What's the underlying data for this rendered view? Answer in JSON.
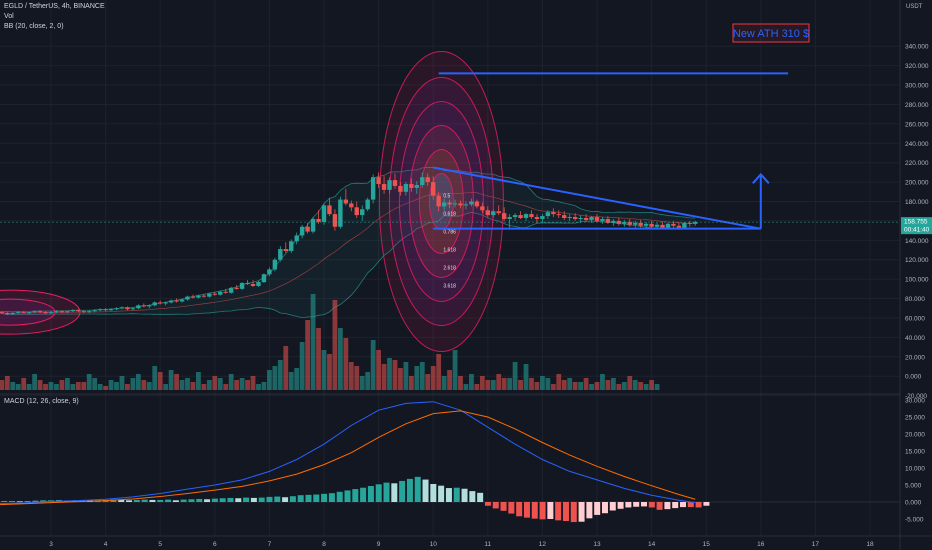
{
  "header": {
    "symbol_line": "EGLD / TetherUS, 4h, BINANCE",
    "vol_label": "Vol",
    "bb_label": "BB (20, close, 2, 0)",
    "macd_label": "MACD (12, 26, close, 9)"
  },
  "price_axis": {
    "currency": "USDT",
    "ticks": [
      "340.000",
      "320.000",
      "300.000",
      "280.000",
      "260.000",
      "240.000",
      "220.000",
      "200.000",
      "180.000",
      "160.000",
      "140.000",
      "120.000",
      "100.000",
      "80.000",
      "60.000",
      "40.000",
      "20.000",
      "0.000",
      "-20.000"
    ],
    "last_price": "158.755",
    "countdown": "00:41:40"
  },
  "macd_axis": {
    "ticks": [
      "30.000",
      "25.000",
      "20.000",
      "15.000",
      "10.000",
      "5.000",
      "0.000",
      "-5.000"
    ]
  },
  "time_axis": {
    "ticks": [
      "3",
      "4",
      "5",
      "6",
      "7",
      "8",
      "9",
      "10",
      "11",
      "12",
      "13",
      "14",
      "15",
      "16",
      "17",
      "18"
    ]
  },
  "annotation": {
    "label": "New ATH 310 $"
  },
  "colors": {
    "background": "#131722",
    "up": "#26a69a",
    "down": "#ef5350",
    "trendline": "#2962ff",
    "macd_line": "#2962ff",
    "signal_line": "#ff6d00",
    "annotation_box": "#f23645",
    "axis_text": "#b2b5be"
  },
  "chart_data": [
    {
      "type": "candlestick",
      "title": "EGLD / TetherUS, 4h, BINANCE",
      "x_range": [
        2.0,
        18.5
      ],
      "y_range": [
        -30,
        355
      ],
      "candles": [
        [
          2.0,
          65,
          67,
          63,
          66
        ],
        [
          2.1,
          66,
          67,
          64,
          65
        ],
        [
          2.2,
          65,
          66,
          63,
          64
        ],
        [
          2.3,
          64,
          66,
          63,
          65
        ],
        [
          2.4,
          65,
          67,
          64,
          66
        ],
        [
          2.5,
          66,
          67,
          65,
          65
        ],
        [
          2.6,
          65,
          66,
          64,
          66
        ],
        [
          2.7,
          66,
          67,
          65,
          67
        ],
        [
          2.8,
          67,
          68,
          65,
          66
        ],
        [
          2.9,
          66,
          67,
          64,
          65
        ],
        [
          3.0,
          65,
          67,
          64,
          66
        ],
        [
          3.1,
          66,
          68,
          65,
          67
        ],
        [
          3.2,
          67,
          68,
          65,
          66
        ],
        [
          3.3,
          66,
          67,
          65,
          67
        ],
        [
          3.4,
          67,
          69,
          66,
          68
        ],
        [
          3.5,
          68,
          69,
          66,
          67
        ],
        [
          3.6,
          67,
          68,
          65,
          66
        ],
        [
          3.7,
          66,
          68,
          65,
          67
        ],
        [
          3.8,
          67,
          69,
          66,
          68
        ],
        [
          3.9,
          68,
          70,
          67,
          69
        ],
        [
          4.0,
          69,
          70,
          67,
          68
        ],
        [
          4.1,
          68,
          70,
          67,
          69
        ],
        [
          4.2,
          69,
          71,
          68,
          70
        ],
        [
          4.3,
          70,
          72,
          69,
          71
        ],
        [
          4.4,
          71,
          72,
          68,
          69
        ],
        [
          4.5,
          69,
          71,
          68,
          70
        ],
        [
          4.6,
          70,
          74,
          69,
          73
        ],
        [
          4.7,
          73,
          75,
          71,
          72
        ],
        [
          4.8,
          72,
          74,
          70,
          73
        ],
        [
          4.9,
          73,
          77,
          72,
          76
        ],
        [
          5.0,
          76,
          78,
          74,
          75
        ],
        [
          5.1,
          75,
          77,
          73,
          76
        ],
        [
          5.2,
          76,
          79,
          75,
          78
        ],
        [
          5.3,
          78,
          80,
          76,
          77
        ],
        [
          5.4,
          77,
          80,
          76,
          79
        ],
        [
          5.5,
          79,
          83,
          78,
          82
        ],
        [
          5.6,
          82,
          84,
          80,
          81
        ],
        [
          5.7,
          81,
          84,
          80,
          83
        ],
        [
          5.8,
          83,
          85,
          81,
          82
        ],
        [
          5.9,
          82,
          86,
          81,
          85
        ],
        [
          6.0,
          85,
          87,
          83,
          84
        ],
        [
          6.1,
          84,
          88,
          83,
          87
        ],
        [
          6.2,
          87,
          90,
          85,
          86
        ],
        [
          6.3,
          86,
          92,
          85,
          91
        ],
        [
          6.4,
          91,
          94,
          89,
          90
        ],
        [
          6.5,
          90,
          97,
          89,
          96
        ],
        [
          6.6,
          96,
          99,
          94,
          95
        ],
        [
          6.7,
          95,
          99,
          92,
          93
        ],
        [
          6.8,
          93,
          98,
          92,
          97
        ],
        [
          6.9,
          97,
          106,
          96,
          105
        ],
        [
          7.0,
          105,
          112,
          103,
          110
        ],
        [
          7.1,
          110,
          122,
          108,
          120
        ],
        [
          7.2,
          120,
          134,
          118,
          131
        ],
        [
          7.3,
          131,
          138,
          127,
          129
        ],
        [
          7.4,
          129,
          141,
          127,
          139
        ],
        [
          7.5,
          139,
          148,
          136,
          145
        ],
        [
          7.6,
          145,
          156,
          142,
          154
        ],
        [
          7.7,
          154,
          158,
          147,
          149
        ],
        [
          7.8,
          149,
          164,
          147,
          162
        ],
        [
          7.9,
          162,
          171,
          157,
          159
        ],
        [
          8.0,
          159,
          178,
          156,
          176
        ],
        [
          8.1,
          176,
          184,
          165,
          167
        ],
        [
          8.2,
          167,
          172,
          150,
          154
        ],
        [
          8.3,
          154,
          185,
          152,
          182
        ],
        [
          8.4,
          182,
          193,
          176,
          178
        ],
        [
          8.5,
          178,
          181,
          170,
          174
        ],
        [
          8.6,
          174,
          180,
          163,
          166
        ],
        [
          8.7,
          166,
          176,
          160,
          172
        ],
        [
          8.8,
          172,
          184,
          170,
          182
        ],
        [
          8.9,
          182,
          208,
          178,
          205
        ],
        [
          9.0,
          205,
          210,
          194,
          198
        ],
        [
          9.1,
          198,
          206,
          188,
          192
        ],
        [
          9.2,
          192,
          205,
          188,
          202
        ],
        [
          9.3,
          202,
          209,
          193,
          196
        ],
        [
          9.4,
          196,
          200,
          186,
          190
        ],
        [
          9.5,
          190,
          200,
          186,
          198
        ],
        [
          9.6,
          198,
          204,
          190,
          194
        ],
        [
          9.7,
          194,
          201,
          188,
          197
        ],
        [
          9.8,
          197,
          210,
          194,
          205
        ],
        [
          9.9,
          205,
          209,
          196,
          200
        ],
        [
          10.0,
          200,
          206,
          182,
          186
        ],
        [
          10.1,
          186,
          190,
          170,
          175
        ],
        [
          10.2,
          175,
          183,
          171,
          179
        ],
        [
          10.3,
          179,
          182,
          173,
          177
        ],
        [
          10.4,
          177,
          182,
          174,
          178
        ],
        [
          10.5,
          178,
          181,
          173,
          176
        ],
        [
          10.6,
          176,
          180,
          172,
          177
        ],
        [
          10.7,
          177,
          183,
          175,
          180
        ],
        [
          10.8,
          180,
          182,
          173,
          175
        ],
        [
          10.9,
          175,
          179,
          168,
          171
        ],
        [
          11.0,
          171,
          175,
          164,
          166
        ],
        [
          11.1,
          166,
          172,
          163,
          170
        ],
        [
          11.2,
          170,
          176,
          166,
          168
        ],
        [
          11.3,
          168,
          174,
          160,
          162
        ],
        [
          11.4,
          162,
          167,
          152,
          164
        ],
        [
          11.5,
          164,
          168,
          160,
          166
        ],
        [
          11.6,
          166,
          170,
          162,
          163
        ],
        [
          11.7,
          163,
          168,
          160,
          167
        ],
        [
          11.8,
          167,
          171,
          162,
          164
        ],
        [
          11.9,
          164,
          167,
          158,
          162
        ],
        [
          12.0,
          162,
          167,
          158,
          165
        ],
        [
          12.1,
          165,
          171,
          162,
          169
        ],
        [
          12.2,
          169,
          173,
          164,
          167
        ],
        [
          12.3,
          167,
          171,
          163,
          166
        ],
        [
          12.4,
          166,
          170,
          161,
          163
        ],
        [
          12.5,
          163,
          167,
          160,
          164
        ],
        [
          12.6,
          164,
          168,
          160,
          162
        ],
        [
          12.7,
          162,
          166,
          158,
          163
        ],
        [
          12.8,
          163,
          167,
          159,
          161
        ],
        [
          12.9,
          161,
          165,
          158,
          164
        ],
        [
          13.0,
          164,
          167,
          159,
          160
        ],
        [
          13.1,
          160,
          164,
          157,
          162
        ],
        [
          13.2,
          162,
          165,
          157,
          158
        ],
        [
          13.3,
          158,
          162,
          155,
          160
        ],
        [
          13.4,
          160,
          163,
          155,
          157
        ],
        [
          13.5,
          157,
          161,
          154,
          159
        ],
        [
          13.6,
          159,
          162,
          154,
          156
        ],
        [
          13.7,
          156,
          160,
          153,
          158
        ],
        [
          13.8,
          158,
          161,
          153,
          155
        ],
        [
          13.9,
          155,
          159,
          152,
          157
        ],
        [
          14.0,
          157,
          160,
          153,
          154
        ],
        [
          14.1,
          154,
          158,
          151,
          156
        ],
        [
          14.2,
          156,
          159,
          152,
          153
        ],
        [
          14.3,
          153,
          158,
          151,
          157
        ],
        [
          14.4,
          157,
          160,
          152,
          155
        ],
        [
          14.5,
          155,
          159,
          151,
          153
        ],
        [
          14.6,
          153,
          159,
          152,
          158
        ],
        [
          14.7,
          158,
          160,
          154,
          157
        ],
        [
          14.8,
          157,
          160,
          155,
          159
        ]
      ],
      "volume": [
        2,
        5,
        7,
        4,
        3,
        6,
        3,
        8,
        5,
        3,
        4,
        3,
        5,
        6,
        3,
        4,
        4,
        8,
        6,
        3,
        2,
        5,
        4,
        7,
        3,
        6,
        8,
        5,
        4,
        12,
        9,
        3,
        10,
        8,
        5,
        6,
        4,
        9,
        3,
        5,
        7,
        6,
        3,
        8,
        5,
        6,
        5,
        7,
        3,
        4,
        10,
        12,
        15,
        22,
        9,
        11,
        24,
        35,
        48,
        31,
        20,
        18,
        45,
        31,
        26,
        14,
        12,
        7,
        9,
        25,
        20,
        13,
        16,
        15,
        11,
        14,
        7,
        12,
        14,
        8,
        12,
        18,
        7,
        10,
        20,
        7,
        3,
        8,
        3,
        7,
        5,
        5,
        8,
        6,
        6,
        14,
        5,
        13,
        6,
        4,
        7,
        6,
        3,
        8,
        5,
        6,
        4,
        4,
        6,
        3,
        4,
        8,
        5,
        6,
        3,
        4,
        7,
        5,
        4,
        3,
        5,
        3
      ],
      "trendlines": [
        {
          "from": [
            10.0,
            215
          ],
          "to": [
            16.0,
            152
          ]
        },
        {
          "from": [
            10.0,
            152
          ],
          "to": [
            16.0,
            152
          ]
        },
        {
          "from": [
            10.1,
            312
          ],
          "to": [
            16.5,
            312
          ]
        }
      ],
      "target_arrow": {
        "x": 16.0,
        "from": 152,
        "to": 208
      },
      "fib_labels": [
        "0.5",
        "0.618",
        "0.786",
        "1.618",
        "2.618",
        "3.618"
      ]
    },
    {
      "type": "line",
      "title": "MACD (12, 26, close, 9)",
      "x": [
        2.0,
        2.5,
        3.0,
        3.5,
        4.0,
        4.5,
        5.0,
        5.5,
        6.0,
        6.5,
        7.0,
        7.5,
        8.0,
        8.5,
        9.0,
        9.5,
        10.0,
        10.5,
        11.0,
        11.5,
        12.0,
        12.5,
        13.0,
        13.5,
        14.0,
        14.5,
        14.8
      ],
      "series": [
        {
          "name": "MACD",
          "values": [
            -0.5,
            -0.3,
            0.2,
            0.4,
            0.8,
            1.5,
            2.5,
            3.8,
            5.0,
            6.5,
            9.0,
            12.5,
            17.0,
            22.5,
            27.0,
            29.0,
            29.5,
            27.0,
            22.0,
            17.0,
            12.5,
            9.0,
            6.5,
            4.0,
            2.0,
            0.5,
            -0.2
          ]
        },
        {
          "name": "Signal",
          "values": [
            -0.8,
            -0.5,
            -0.2,
            0.1,
            0.4,
            0.9,
            1.6,
            2.5,
            3.5,
            4.6,
            6.2,
            8.2,
            11.0,
            14.5,
            19.0,
            23.0,
            26.0,
            26.8,
            25.0,
            21.5,
            17.5,
            13.8,
            10.5,
            7.5,
            4.8,
            2.2,
            0.8
          ]
        }
      ],
      "histogram": [
        0.3,
        0.3,
        0.3,
        0.2,
        0.3,
        0.4,
        0.5,
        0.5,
        0.6,
        0.4,
        0.5,
        0.6,
        0.4,
        0.5,
        0.6,
        0.7,
        0.6,
        0.5,
        0.6,
        0.7,
        0.6,
        0.6,
        0.7,
        0.5,
        0.7,
        0.8,
        0.9,
        0.8,
        1.0,
        1.1,
        1.2,
        1.1,
        1.3,
        1.2,
        1.3,
        1.5,
        1.6,
        1.4,
        1.7,
        2.0,
        2.1,
        2.2,
        2.4,
        2.6,
        3.0,
        3.4,
        3.8,
        4.2,
        4.7,
        5.2,
        5.7,
        5.5,
        6.2,
        6.8,
        7.4,
        6.6,
        5.3,
        4.8,
        4.1,
        4.2,
        3.9,
        3.2,
        2.7,
        -1.1,
        -1.9,
        -2.6,
        -3.4,
        -4.2,
        -4.6,
        -4.9,
        -5.1,
        -5.0,
        -5.4,
        -5.6,
        -5.9,
        -5.8,
        -4.8,
        -3.8,
        -3.3,
        -2.5,
        -2.0,
        -1.6,
        -1.4,
        -1.3,
        -1.6,
        -2.3,
        -2.1,
        -1.8,
        -1.5,
        -1.5,
        -1.6,
        -1.1
      ]
    }
  ]
}
